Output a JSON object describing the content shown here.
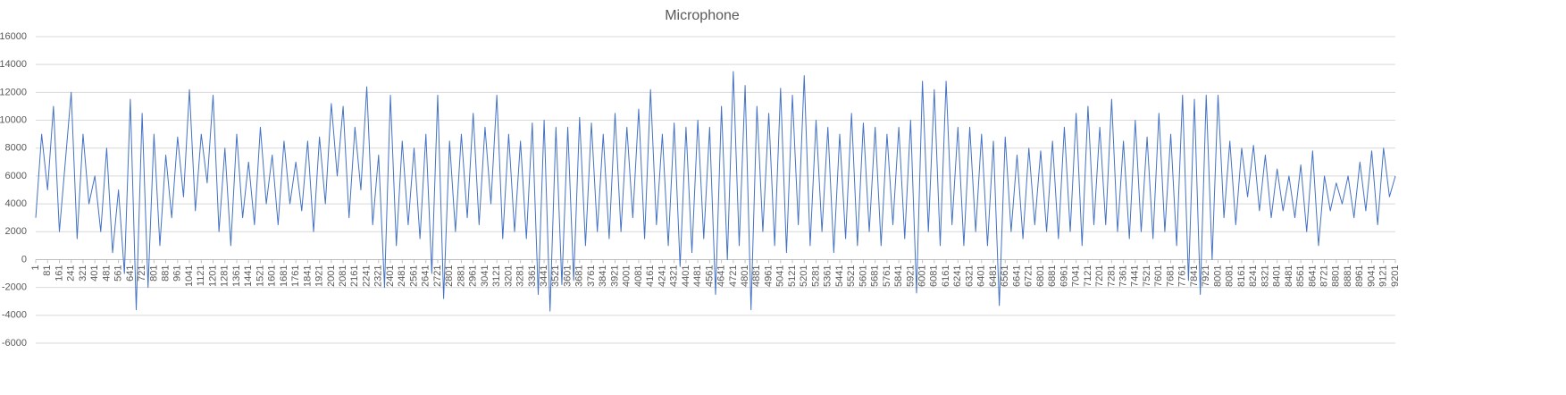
{
  "chart_data": {
    "type": "line",
    "title": "Microphone",
    "color": "#4472c4",
    "grid": true,
    "ylim": [
      -6000,
      16000
    ],
    "yticks": [
      -6000,
      -4000,
      -2000,
      0,
      2000,
      4000,
      6000,
      8000,
      10000,
      12000,
      14000,
      16000
    ],
    "xlim": [
      1,
      9201
    ],
    "xticks": [
      1,
      81,
      161,
      241,
      321,
      401,
      481,
      561,
      641,
      721,
      801,
      881,
      961,
      1041,
      1121,
      1201,
      1281,
      1361,
      1441,
      1521,
      1601,
      1681,
      1761,
      1841,
      1921,
      2001,
      2081,
      2161,
      2241,
      2321,
      2401,
      2481,
      2561,
      2641,
      2721,
      2801,
      2881,
      2961,
      3041,
      3121,
      3201,
      3281,
      3361,
      3441,
      3521,
      3601,
      3681,
      3761,
      3841,
      3921,
      4001,
      4081,
      4161,
      4241,
      4321,
      4401,
      4481,
      4561,
      4641,
      4721,
      4801,
      4881,
      4961,
      5041,
      5121,
      5201,
      5281,
      5361,
      5441,
      5521,
      5601,
      5681,
      5761,
      5841,
      5921,
      6001,
      6081,
      6161,
      6241,
      6321,
      6401,
      6481,
      6561,
      6641,
      6721,
      6801,
      6881,
      6961,
      7041,
      7121,
      7201,
      7281,
      7361,
      7441,
      7521,
      7601,
      7681,
      7761,
      7841,
      7921,
      8001,
      8081,
      8161,
      8241,
      8321,
      8401,
      8481,
      8561,
      8641,
      8721,
      8801,
      8881,
      8961,
      9041,
      9121,
      9201
    ],
    "x": [
      1,
      41,
      81,
      121,
      161,
      201,
      241,
      281,
      321,
      361,
      401,
      441,
      481,
      521,
      561,
      601,
      641,
      681,
      721,
      761,
      801,
      841,
      881,
      921,
      961,
      1001,
      1041,
      1081,
      1121,
      1161,
      1201,
      1241,
      1281,
      1321,
      1361,
      1401,
      1441,
      1481,
      1521,
      1561,
      1601,
      1641,
      1681,
      1721,
      1761,
      1801,
      1841,
      1881,
      1921,
      1961,
      2001,
      2041,
      2081,
      2121,
      2161,
      2201,
      2241,
      2281,
      2321,
      2361,
      2401,
      2441,
      2481,
      2521,
      2561,
      2601,
      2641,
      2681,
      2721,
      2761,
      2801,
      2841,
      2881,
      2921,
      2961,
      3001,
      3041,
      3081,
      3121,
      3161,
      3201,
      3241,
      3281,
      3321,
      3361,
      3401,
      3441,
      3481,
      3521,
      3561,
      3601,
      3641,
      3681,
      3721,
      3761,
      3801,
      3841,
      3881,
      3921,
      3961,
      4001,
      4041,
      4081,
      4121,
      4161,
      4201,
      4241,
      4281,
      4321,
      4361,
      4401,
      4441,
      4481,
      4521,
      4561,
      4601,
      4641,
      4681,
      4721,
      4761,
      4801,
      4841,
      4881,
      4921,
      4961,
      5001,
      5041,
      5081,
      5121,
      5161,
      5201,
      5241,
      5281,
      5321,
      5361,
      5401,
      5441,
      5481,
      5521,
      5561,
      5601,
      5641,
      5681,
      5721,
      5761,
      5801,
      5841,
      5881,
      5921,
      5961,
      6001,
      6041,
      6081,
      6121,
      6161,
      6201,
      6241,
      6281,
      6321,
      6361,
      6401,
      6441,
      6481,
      6521,
      6561,
      6601,
      6641,
      6681,
      6721,
      6761,
      6801,
      6841,
      6881,
      6921,
      6961,
      7001,
      7041,
      7081,
      7121,
      7161,
      7201,
      7241,
      7281,
      7321,
      7361,
      7401,
      7441,
      7481,
      7521,
      7561,
      7601,
      7641,
      7681,
      7721,
      7761,
      7801,
      7841,
      7881,
      7921,
      7961,
      8001,
      8041,
      8081,
      8121,
      8161,
      8201,
      8241,
      8281,
      8321,
      8361,
      8401,
      8441,
      8481,
      8521,
      8561,
      8601,
      8641,
      8681,
      8721,
      8761,
      8801,
      8841,
      8881,
      8921,
      8961,
      9001,
      9041,
      9081,
      9121,
      9161,
      9201
    ],
    "values": [
      3000,
      9000,
      5000,
      11000,
      2000,
      7000,
      12000,
      1500,
      9000,
      4000,
      6000,
      2000,
      8000,
      500,
      5000,
      -1000,
      11500,
      -3600,
      10500,
      -2000,
      9000,
      1000,
      7500,
      3000,
      8800,
      4500,
      12200,
      3500,
      9000,
      5500,
      11800,
      2000,
      8000,
      1000,
      9000,
      3000,
      7000,
      2500,
      9500,
      4000,
      7500,
      2500,
      8500,
      4000,
      7000,
      3500,
      8500,
      2000,
      8800,
      4000,
      11200,
      6000,
      11000,
      3000,
      9500,
      5000,
      12400,
      2500,
      7500,
      -2000,
      11800,
      1000,
      8500,
      2500,
      8000,
      1500,
      9000,
      -1000,
      11800,
      -2800,
      8500,
      2000,
      9000,
      3000,
      10500,
      2500,
      9500,
      4000,
      11800,
      1500,
      9000,
      2000,
      8500,
      1500,
      9800,
      -2500,
      10000,
      -3700,
      9500,
      -1800,
      9500,
      -1500,
      10200,
      1000,
      9800,
      2000,
      9000,
      1500,
      10500,
      2000,
      9500,
      3000,
      10800,
      1500,
      12200,
      2500,
      9000,
      1000,
      9800,
      -500,
      9500,
      500,
      10000,
      1500,
      9500,
      -2500,
      11000,
      0,
      13500,
      1000,
      12500,
      -3600,
      11000,
      2000,
      10500,
      1000,
      12300,
      500,
      11800,
      2500,
      13200,
      1000,
      10000,
      2000,
      9500,
      500,
      9000,
      1500,
      10500,
      1000,
      9800,
      2000,
      9500,
      1000,
      9000,
      2500,
      9500,
      1500,
      10000,
      -2400,
      12800,
      2000,
      12200,
      1000,
      12800,
      2500,
      9500,
      1000,
      9500,
      2000,
      9000,
      1000,
      8500,
      -3300,
      8800,
      2000,
      7500,
      1500,
      8000,
      2500,
      7800,
      2000,
      8500,
      1500,
      9500,
      2000,
      10500,
      1000,
      11000,
      2500,
      9500,
      2500,
      11500,
      2000,
      8500,
      1500,
      10000,
      2000,
      8800,
      1500,
      10500,
      2000,
      9000,
      1000,
      11800,
      -1500,
      11500,
      -2500,
      11800,
      0,
      11800,
      3000,
      8500,
      2500,
      8000,
      4500,
      8200,
      3500,
      7500,
      3000,
      6500,
      3500,
      6000,
      3000,
      6800,
      2000,
      7800,
      1000,
      6000,
      3500,
      5500,
      4000,
      6000,
      3000,
      7000,
      3500,
      7800,
      2500,
      8000,
      4500,
      6000
    ]
  }
}
